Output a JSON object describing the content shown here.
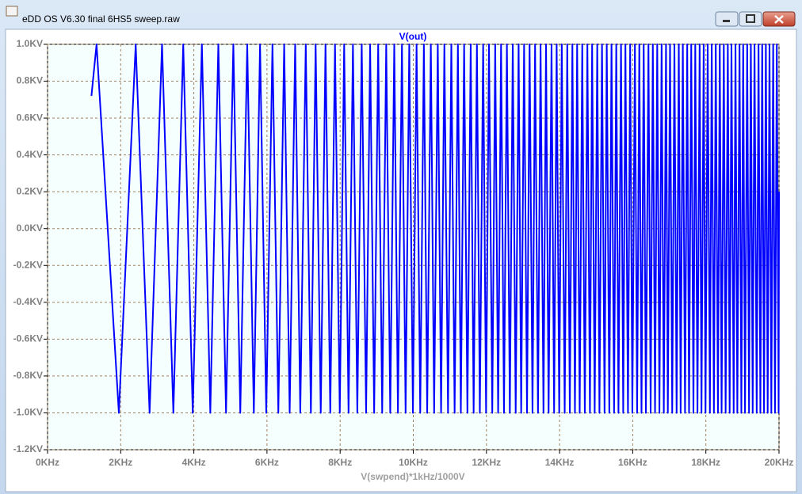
{
  "window": {
    "title": "eDD OS V6.30 final 6HS5 sweep.raw"
  },
  "chart_data": {
    "type": "line",
    "x_label": "V(swpend)*1kHz/1000V",
    "grid": true,
    "xlim": [
      0,
      20
    ],
    "xticks": [
      {
        "value": 0,
        "label": "0KHz"
      },
      {
        "value": 2,
        "label": "2KHz"
      },
      {
        "value": 4,
        "label": "4KHz"
      },
      {
        "value": 6,
        "label": "6KHz"
      },
      {
        "value": 8,
        "label": "8KHz"
      },
      {
        "value": 10,
        "label": "10KHz"
      },
      {
        "value": 12,
        "label": "12KHz"
      },
      {
        "value": 14,
        "label": "14KHz"
      },
      {
        "value": 16,
        "label": "16KHz"
      },
      {
        "value": 18,
        "label": "18KHz"
      },
      {
        "value": 20,
        "label": "20KHz"
      }
    ],
    "ylim": [
      -1.2,
      1.0
    ],
    "yticks": [
      {
        "value": 1.0,
        "label": "1.0KV"
      },
      {
        "value": 0.8,
        "label": "0.8KV"
      },
      {
        "value": 0.6,
        "label": "0.6KV"
      },
      {
        "value": 0.4,
        "label": "0.4KV"
      },
      {
        "value": 0.2,
        "label": "0.2KV"
      },
      {
        "value": 0,
        "label": "0.0KV"
      },
      {
        "value": -0.2,
        "label": "-0.2KV"
      },
      {
        "value": -0.4,
        "label": "-0.4KV"
      },
      {
        "value": -0.6,
        "label": "-0.6KV"
      },
      {
        "value": -0.8,
        "label": "-0.8KV"
      },
      {
        "value": -1.0,
        "label": "-1.0KV"
      },
      {
        "value": -1.2,
        "label": "-1.2KV"
      }
    ],
    "x": [
      1.2,
      1.34,
      1.95,
      2.41,
      2.79,
      3.13,
      3.44,
      3.71,
      3.97,
      4.22,
      4.45,
      4.67,
      4.88,
      5.08,
      5.27,
      5.46,
      5.64,
      5.81,
      5.98,
      6.15,
      6.31,
      6.47,
      6.62,
      6.77,
      6.91,
      7.06,
      7.2,
      7.33,
      7.47,
      7.6,
      7.73,
      7.86,
      7.99,
      8.11,
      8.23,
      8.35,
      8.47,
      8.59,
      8.71,
      8.82,
      8.93,
      9.04,
      9.15,
      9.26,
      9.37,
      9.48,
      9.58,
      9.69,
      9.79,
      9.89,
      9.99,
      10.09,
      10.19,
      10.29,
      10.38,
      10.48,
      10.57,
      10.67,
      10.76,
      10.85,
      10.95,
      11.04,
      11.13,
      11.22,
      11.3,
      11.39,
      11.48,
      11.57,
      11.65,
      11.74,
      11.82,
      11.91,
      11.99,
      12.07,
      12.16,
      12.24,
      12.32,
      12.4,
      12.48,
      12.56,
      12.64,
      12.72,
      12.8,
      12.88,
      12.95,
      13.03,
      13.11,
      13.18,
      13.26,
      13.33,
      13.41,
      13.48,
      13.56,
      13.63,
      13.7,
      13.78,
      13.85,
      13.92,
      13.99,
      14.06,
      14.14,
      14.21,
      14.28,
      14.35,
      14.42,
      14.48,
      14.55,
      14.62,
      14.69,
      14.76,
      14.83,
      14.89,
      14.96,
      15.03,
      15.09,
      15.16,
      15.23,
      15.29,
      15.36,
      15.42,
      15.49,
      15.55,
      15.61,
      15.68,
      15.74,
      15.8,
      15.87,
      15.93,
      15.99,
      16.06,
      16.12,
      16.18,
      16.24,
      16.3,
      16.36,
      16.43,
      16.49,
      16.55,
      16.61,
      16.67,
      16.73,
      16.79,
      16.85,
      16.91,
      16.96,
      17.02,
      17.08,
      17.14,
      17.2,
      17.26,
      17.31,
      17.37,
      17.43,
      17.49,
      17.54,
      17.6,
      17.66,
      17.71,
      17.77,
      17.83,
      17.88,
      17.94,
      17.99,
      18.05,
      18.11,
      18.16,
      18.22,
      18.27,
      18.33,
      18.38,
      18.43,
      18.49,
      18.54,
      18.6,
      18.65,
      18.7,
      18.76,
      18.81,
      18.86,
      18.92,
      18.97,
      19.02,
      19.07,
      19.13,
      19.18,
      19.23,
      19.28,
      19.33,
      19.39,
      19.44,
      19.49,
      19.54,
      19.59,
      19.64,
      19.69,
      19.74,
      19.79,
      19.84,
      19.89,
      19.94,
      19.99,
      20
    ],
    "series": [
      {
        "name": "V(out)",
        "color": "#0000ff",
        "values": [
          0.72,
          1,
          -1,
          1,
          -1,
          1,
          -1,
          1,
          -1,
          1,
          -1,
          1,
          -1,
          1,
          -1,
          1,
          -1,
          1,
          -1,
          1,
          -1,
          1,
          -1,
          1,
          -1,
          1,
          -1,
          1,
          -1,
          1,
          -1,
          1,
          -1,
          1,
          -1,
          1,
          -1,
          1,
          -1,
          1,
          -1,
          1,
          -1,
          1,
          -1,
          1,
          -1,
          1,
          -1,
          1,
          -1,
          1,
          -1,
          1,
          -1,
          1,
          -1,
          1,
          -1,
          1,
          -1,
          1,
          -1,
          1,
          -1,
          1,
          -1,
          1,
          -1,
          1,
          -1,
          1,
          -1,
          1,
          -1,
          1,
          -1,
          1,
          -1,
          1,
          -1,
          1,
          -1,
          1,
          -1,
          1,
          -1,
          1,
          -1,
          1,
          -1,
          1,
          -1,
          1,
          -1,
          1,
          -1,
          1,
          -1,
          1,
          -1,
          1,
          -1,
          1,
          -1,
          1,
          -1,
          1,
          -1,
          1,
          -1,
          1,
          -1,
          1,
          -1,
          1,
          -1,
          1,
          -1,
          1,
          -1,
          1,
          -1,
          1,
          -1,
          1,
          -1,
          1,
          -1,
          1,
          -1,
          1,
          -1,
          1,
          -1,
          1,
          -1,
          1,
          -1,
          1,
          -1,
          1,
          -1,
          1,
          -1,
          1,
          -1,
          1,
          -1,
          1,
          -1,
          1,
          -1,
          1,
          -1,
          1,
          -1,
          1,
          -1,
          1,
          -1,
          1,
          -1,
          1,
          -1,
          1,
          -1,
          1,
          -1,
          1,
          -1,
          1,
          -1,
          1,
          -1,
          1,
          -1,
          1,
          -1,
          1,
          -1,
          1,
          -1,
          1,
          -1,
          1,
          -1,
          1,
          -1,
          1,
          -1,
          1,
          -1,
          1,
          -1,
          1,
          -1,
          1,
          -1,
          1,
          -1,
          0.2
        ]
      }
    ]
  }
}
